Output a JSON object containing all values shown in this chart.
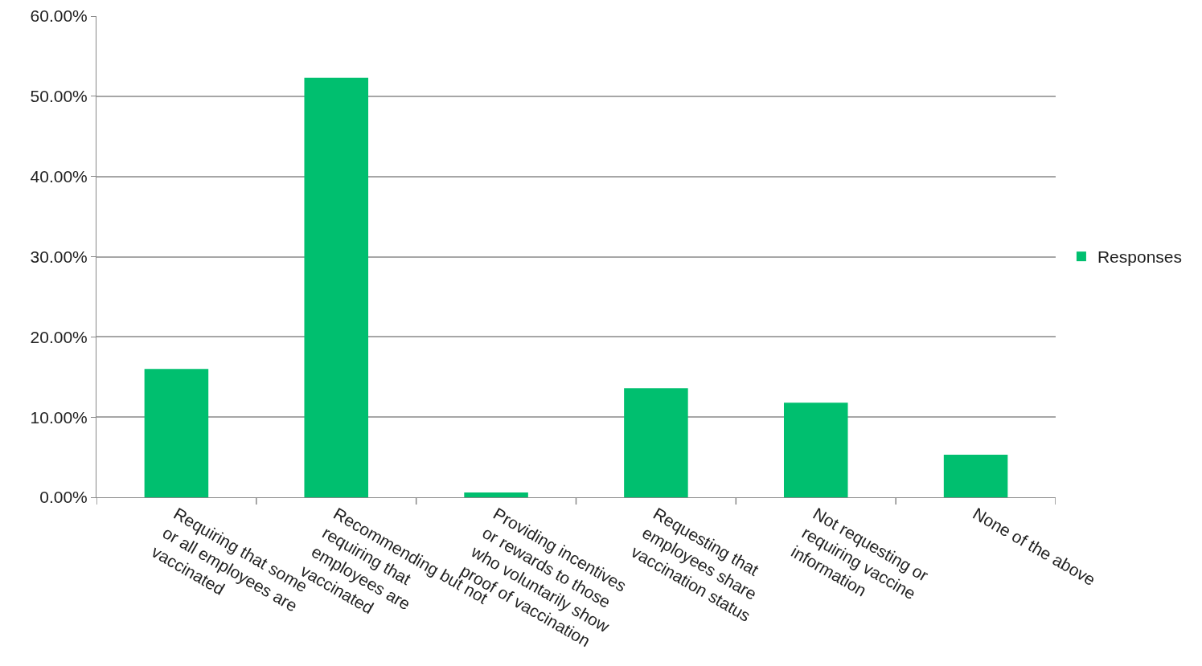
{
  "chart_data": {
    "type": "bar",
    "categories": [
      "Requiring that some or all employees are vaccinated",
      "Recommending but not requiring that employees are vaccinated",
      "Providing incentives or rewards to those who voluntarily show proof of vaccination",
      "Requesting that employees share vaccination status",
      "Not requesting or requiring vaccine information",
      "None of the above"
    ],
    "series": [
      {
        "name": "Responses",
        "color": "#00bf6f",
        "values": [
          16.0,
          52.3,
          0.6,
          13.6,
          11.8,
          5.3
        ]
      }
    ],
    "ylim": [
      0,
      60
    ],
    "yticks": [
      {
        "value": 0,
        "label": "0.00%"
      },
      {
        "value": 10,
        "label": "10.00%"
      },
      {
        "value": 20,
        "label": "20.00%"
      },
      {
        "value": 30,
        "label": "30.00%"
      },
      {
        "value": 40,
        "label": "40.00%"
      },
      {
        "value": 50,
        "label": "50.00%"
      },
      {
        "value": 60,
        "label": "60.00%"
      }
    ],
    "grid": "y",
    "legend": "right"
  }
}
